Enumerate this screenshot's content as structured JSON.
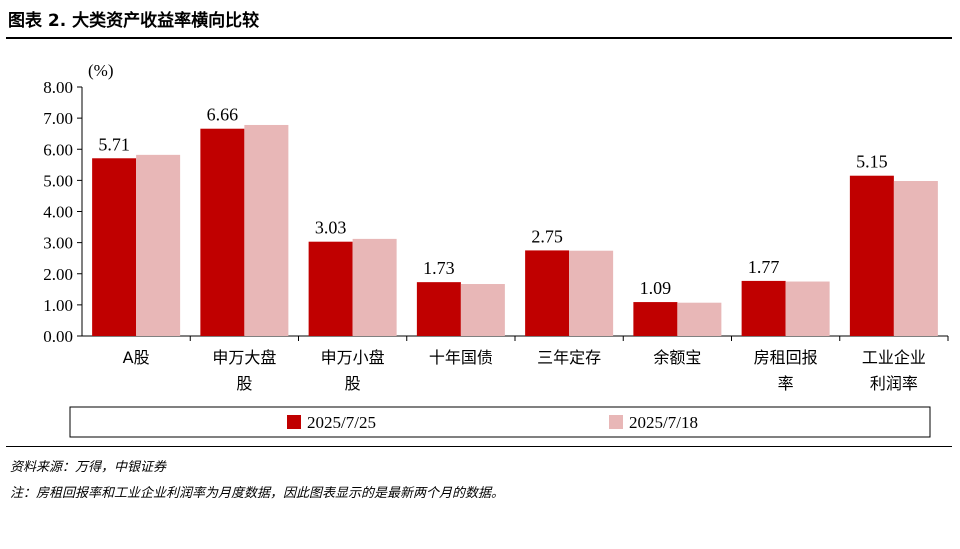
{
  "figure": {
    "title": "图表 2.  大类资产收益率横向比较",
    "source": "资料来源：万得，中银证券",
    "note": "注：房租回报率和工业企业利润率为月度数据，因此图表显示的是最新两个月的数据。"
  },
  "chart_data": {
    "type": "bar",
    "unit_label": "(%)",
    "categories": [
      [
        "A股"
      ],
      [
        "申万大盘",
        "股"
      ],
      [
        "申万小盘",
        "股"
      ],
      [
        "十年国债"
      ],
      [
        "三年定存"
      ],
      [
        "余额宝"
      ],
      [
        "房租回报",
        "率"
      ],
      [
        "工业企业",
        "利润率"
      ]
    ],
    "series": [
      {
        "name": "2025/7/25",
        "values": [
          5.71,
          6.66,
          3.03,
          1.73,
          2.75,
          1.09,
          1.77,
          5.15
        ],
        "color": "#c00000",
        "labels": [
          "5.71",
          "6.66",
          "3.03",
          "1.73",
          "2.75",
          "1.09",
          "1.77",
          "5.15"
        ]
      },
      {
        "name": "2025/7/18",
        "values": [
          5.82,
          6.78,
          3.12,
          1.67,
          2.74,
          1.07,
          1.75,
          4.98
        ],
        "color": "#e8b7b7"
      }
    ],
    "ylim": [
      0,
      8
    ],
    "yticks": [
      "0.00",
      "1.00",
      "2.00",
      "3.00",
      "4.00",
      "5.00",
      "6.00",
      "7.00",
      "8.00"
    ],
    "grid": false,
    "legend_position": "bottom"
  }
}
